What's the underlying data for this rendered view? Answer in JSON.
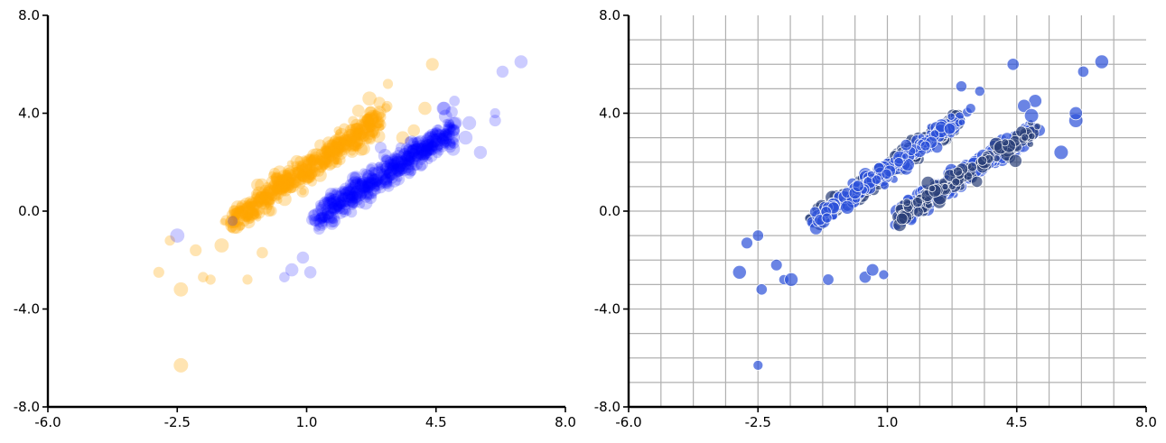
{
  "chart_data": [
    {
      "type": "scatter",
      "xlim": [
        -6,
        8
      ],
      "ylim": [
        -8,
        8
      ],
      "xticks": [
        -6.0,
        -2.5,
        1.0,
        4.5,
        8.0
      ],
      "yticks": [
        -8.0,
        -4.0,
        0.0,
        4.0,
        8.0
      ],
      "xtick_labels": [
        "-6.0",
        "-2.5",
        "1.0",
        "4.5",
        "8.0"
      ],
      "ytick_labels": [
        "-8.0",
        "-4.0",
        "0.0",
        "4.0",
        "8.0"
      ],
      "grid": false,
      "spines": "left-bottom",
      "series": [
        {
          "color": "#ffa500",
          "alpha": 0.3,
          "clusters": [
            {
              "x0": -1.0,
              "x1": 3.0,
              "slope": 1.05,
              "y_at_x0": -0.4,
              "spread": 0.28,
              "n": 520
            }
          ],
          "points": [
            {
              "x": -3.0,
              "y": -2.5
            },
            {
              "x": -2.4,
              "y": -3.2
            },
            {
              "x": -2.4,
              "y": -6.3
            },
            {
              "x": -2.7,
              "y": -1.2
            },
            {
              "x": -2.0,
              "y": -1.6
            },
            {
              "x": -1.8,
              "y": -2.7
            },
            {
              "x": -1.6,
              "y": -2.8
            },
            {
              "x": -1.3,
              "y": -1.4
            },
            {
              "x": -0.6,
              "y": -2.8
            },
            {
              "x": 4.4,
              "y": 6.0
            },
            {
              "x": 3.2,
              "y": 5.2
            },
            {
              "x": 2.4,
              "y": 4.1
            },
            {
              "x": 2.7,
              "y": 4.6
            },
            {
              "x": 3.6,
              "y": 3.0
            },
            {
              "x": 4.2,
              "y": 4.2
            },
            {
              "x": -0.2,
              "y": -1.7
            },
            {
              "x": -1.0,
              "y": -0.4
            },
            {
              "x": 3.9,
              "y": 3.3
            }
          ]
        },
        {
          "color": "#0000ff",
          "alpha": 0.2,
          "clusters": [
            {
              "x0": 1.3,
              "x1": 5.0,
              "slope": 0.95,
              "y_at_x0": -0.2,
              "spread": 0.3,
              "n": 540
            }
          ],
          "points": [
            {
              "x": -2.5,
              "y": -1.0
            },
            {
              "x": -1.0,
              "y": -0.4
            },
            {
              "x": 0.4,
              "y": -2.7
            },
            {
              "x": 0.6,
              "y": -2.4
            },
            {
              "x": 0.9,
              "y": -1.9
            },
            {
              "x": 1.1,
              "y": -2.5
            },
            {
              "x": 6.3,
              "y": 5.7
            },
            {
              "x": 6.8,
              "y": 6.1
            },
            {
              "x": 6.1,
              "y": 3.7
            },
            {
              "x": 6.1,
              "y": 4.0
            },
            {
              "x": 5.0,
              "y": 4.5
            },
            {
              "x": 4.7,
              "y": 4.2
            },
            {
              "x": 5.7,
              "y": 2.4
            },
            {
              "x": 5.3,
              "y": 3.0
            },
            {
              "x": 5.4,
              "y": 3.6
            }
          ]
        }
      ]
    },
    {
      "type": "scatter",
      "xlim": [
        -6,
        8
      ],
      "ylim": [
        -8,
        8
      ],
      "xticks": [
        -6.0,
        -2.5,
        1.0,
        4.5,
        8.0
      ],
      "yticks": [
        -8.0,
        -4.0,
        0.0,
        4.0,
        8.0
      ],
      "xtick_labels": [
        "-6.0",
        "-2.5",
        "1.0",
        "4.5",
        "8.0"
      ],
      "ytick_labels": [
        "-8.0",
        "-4.0",
        "0.0",
        "4.0",
        "8.0"
      ],
      "grid": true,
      "grid_x_step": 0.875,
      "grid_y_step": 1.0,
      "spines": "left-bottom",
      "series": [
        {
          "color": "#2b50d8",
          "edge_color": "#ffffff",
          "alpha": 0.7,
          "clusters": [
            {
              "x0": -1.0,
              "x1": 3.0,
              "slope": 1.05,
              "y_at_x0": -0.4,
              "spread": 0.22,
              "n": 260,
              "color": "#2a3f78"
            },
            {
              "x0": -1.0,
              "x1": 3.0,
              "slope": 1.05,
              "y_at_x0": -0.4,
              "spread": 0.22,
              "n": 200
            },
            {
              "x0": 1.3,
              "x1": 5.0,
              "slope": 0.95,
              "y_at_x0": -0.2,
              "spread": 0.22,
              "n": 300
            },
            {
              "x0": 1.3,
              "x1": 5.0,
              "slope": 0.95,
              "y_at_x0": -0.2,
              "spread": 0.22,
              "n": 120,
              "color": "#2a3f78"
            }
          ],
          "points": [
            {
              "x": -3.0,
              "y": -2.5
            },
            {
              "x": -2.4,
              "y": -3.2
            },
            {
              "x": -2.5,
              "y": -6.3
            },
            {
              "x": -2.8,
              "y": -1.3
            },
            {
              "x": -2.5,
              "y": -1.0
            },
            {
              "x": -2.0,
              "y": -2.2
            },
            {
              "x": -1.8,
              "y": -2.8
            },
            {
              "x": -1.6,
              "y": -2.8
            },
            {
              "x": -0.6,
              "y": -2.8
            },
            {
              "x": 0.4,
              "y": -2.7
            },
            {
              "x": 0.6,
              "y": -2.4
            },
            {
              "x": 0.9,
              "y": -2.6
            },
            {
              "x": 4.4,
              "y": 6.0
            },
            {
              "x": 3.0,
              "y": 5.1
            },
            {
              "x": 3.5,
              "y": 4.9
            },
            {
              "x": 6.3,
              "y": 5.7
            },
            {
              "x": 6.8,
              "y": 6.1
            },
            {
              "x": 6.1,
              "y": 3.7
            },
            {
              "x": 6.1,
              "y": 4.0
            },
            {
              "x": 5.0,
              "y": 4.5
            },
            {
              "x": 4.7,
              "y": 4.3
            },
            {
              "x": 5.7,
              "y": 2.4
            },
            {
              "x": 4.9,
              "y": 3.9
            }
          ]
        }
      ]
    }
  ]
}
